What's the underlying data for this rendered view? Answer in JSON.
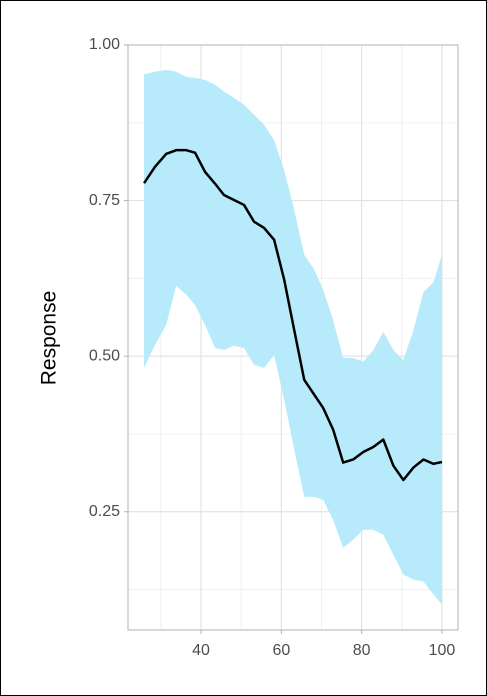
{
  "chart_data": {
    "type": "line",
    "y_label": "Response",
    "x": [
      25.8,
      28.5,
      31.3,
      33.8,
      36.3,
      38.5,
      41,
      43.5,
      45.7,
      48.2,
      50.7,
      53.2,
      55.7,
      58.2,
      60.7,
      63.2,
      65.7,
      68.2,
      70.4,
      72.9,
      75.4,
      77.9,
      80.4,
      82.9,
      85.4,
      87.9,
      90.4,
      92.9,
      95.4,
      97.9,
      100
    ],
    "series": [
      {
        "color": "#000000",
        "values": [
          0.778,
          0.804,
          0.825,
          0.831,
          0.831,
          0.827,
          0.796,
          0.777,
          0.759,
          0.751,
          0.743,
          0.716,
          0.706,
          0.687,
          0.623,
          0.542,
          0.462,
          0.438,
          0.417,
          0.382,
          0.329,
          0.334,
          0.346,
          0.354,
          0.366,
          0.324,
          0.301,
          0.321,
          0.334,
          0.327,
          0.33
        ]
      }
    ],
    "band": {
      "color": "#b3eafc",
      "upper": [
        0.953,
        0.957,
        0.96,
        0.957,
        0.949,
        0.947,
        0.944,
        0.936,
        0.925,
        0.915,
        0.904,
        0.888,
        0.872,
        0.847,
        0.799,
        0.735,
        0.663,
        0.639,
        0.607,
        0.558,
        0.497,
        0.497,
        0.491,
        0.51,
        0.539,
        0.51,
        0.494,
        0.542,
        0.603,
        0.619,
        0.663
      ],
      "lower": [
        0.481,
        0.518,
        0.55,
        0.613,
        0.599,
        0.582,
        0.55,
        0.513,
        0.51,
        0.517,
        0.513,
        0.486,
        0.481,
        0.502,
        0.43,
        0.35,
        0.274,
        0.274,
        0.269,
        0.237,
        0.192,
        0.205,
        0.221,
        0.221,
        0.213,
        0.181,
        0.149,
        0.141,
        0.138,
        0.117,
        0.101
      ]
    },
    "xlim": [
      21.8,
      104
    ],
    "xticks": [
      40,
      60,
      80,
      100
    ],
    "xminor": [
      30,
      50,
      70,
      90
    ],
    "ylim": [
      0.06,
      1.0
    ],
    "yticks": [
      {
        "value": 0.25,
        "label": "0.25"
      },
      {
        "value": 0.5,
        "label": "0.50"
      },
      {
        "value": 0.75,
        "label": "0.75"
      },
      {
        "value": 1.0,
        "label": "1.00"
      }
    ],
    "yminor": [
      0.125,
      0.375,
      0.625,
      0.875
    ],
    "grid": true
  }
}
